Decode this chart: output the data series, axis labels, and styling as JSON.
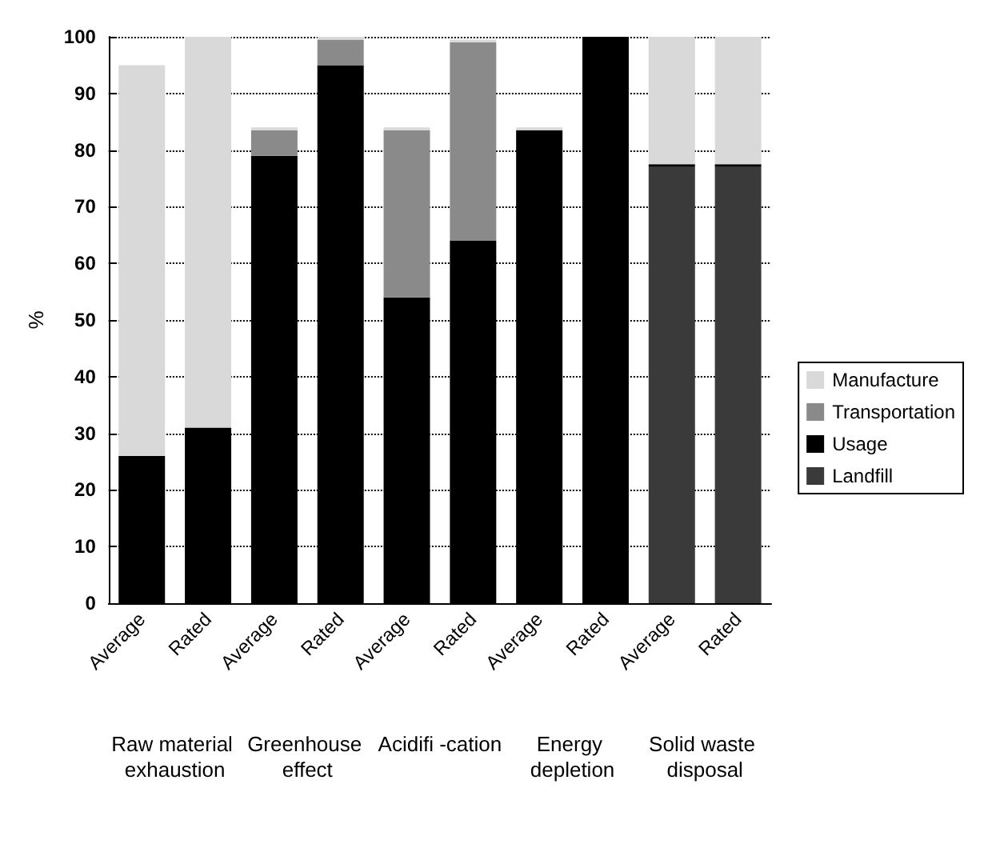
{
  "chart_data": {
    "type": "bar",
    "stacked": true,
    "ylabel": "%",
    "categories": [
      "Average",
      "Rated",
      "Average",
      "Rated",
      "Average",
      "Rated",
      "Average",
      "Rated",
      "Average",
      "Rated"
    ],
    "series": [
      {
        "name": "Landfill",
        "color": "#3a3a3a",
        "values": [
          null,
          null,
          null,
          null,
          null,
          null,
          null,
          null,
          77,
          77
        ]
      },
      {
        "name": "Usage",
        "color": "#000000",
        "values": [
          26,
          31,
          79,
          95,
          54,
          64,
          83.5,
          100,
          0.5,
          0.5
        ]
      },
      {
        "name": "Transportation",
        "color": "#8a8a8a",
        "values": [
          null,
          null,
          4.5,
          4.5,
          29.5,
          35,
          null,
          null,
          null,
          null
        ]
      },
      {
        "name": "Manufacture",
        "color": "#d9d9d9",
        "values": [
          69,
          69,
          0.5,
          0.5,
          0.5,
          0.5,
          0.5,
          null,
          22.5,
          22.5
        ]
      }
    ],
    "ylim": [
      0,
      100
    ],
    "yticks": [
      0,
      10,
      20,
      30,
      40,
      50,
      60,
      70,
      80,
      90,
      100
    ],
    "grid": "y",
    "legend": "right",
    "annotations": [
      "Raw material exhaustion",
      "Greenhouse effect",
      "Acidifi -cation",
      "Energy depletion",
      "Solid waste disposal"
    ]
  }
}
